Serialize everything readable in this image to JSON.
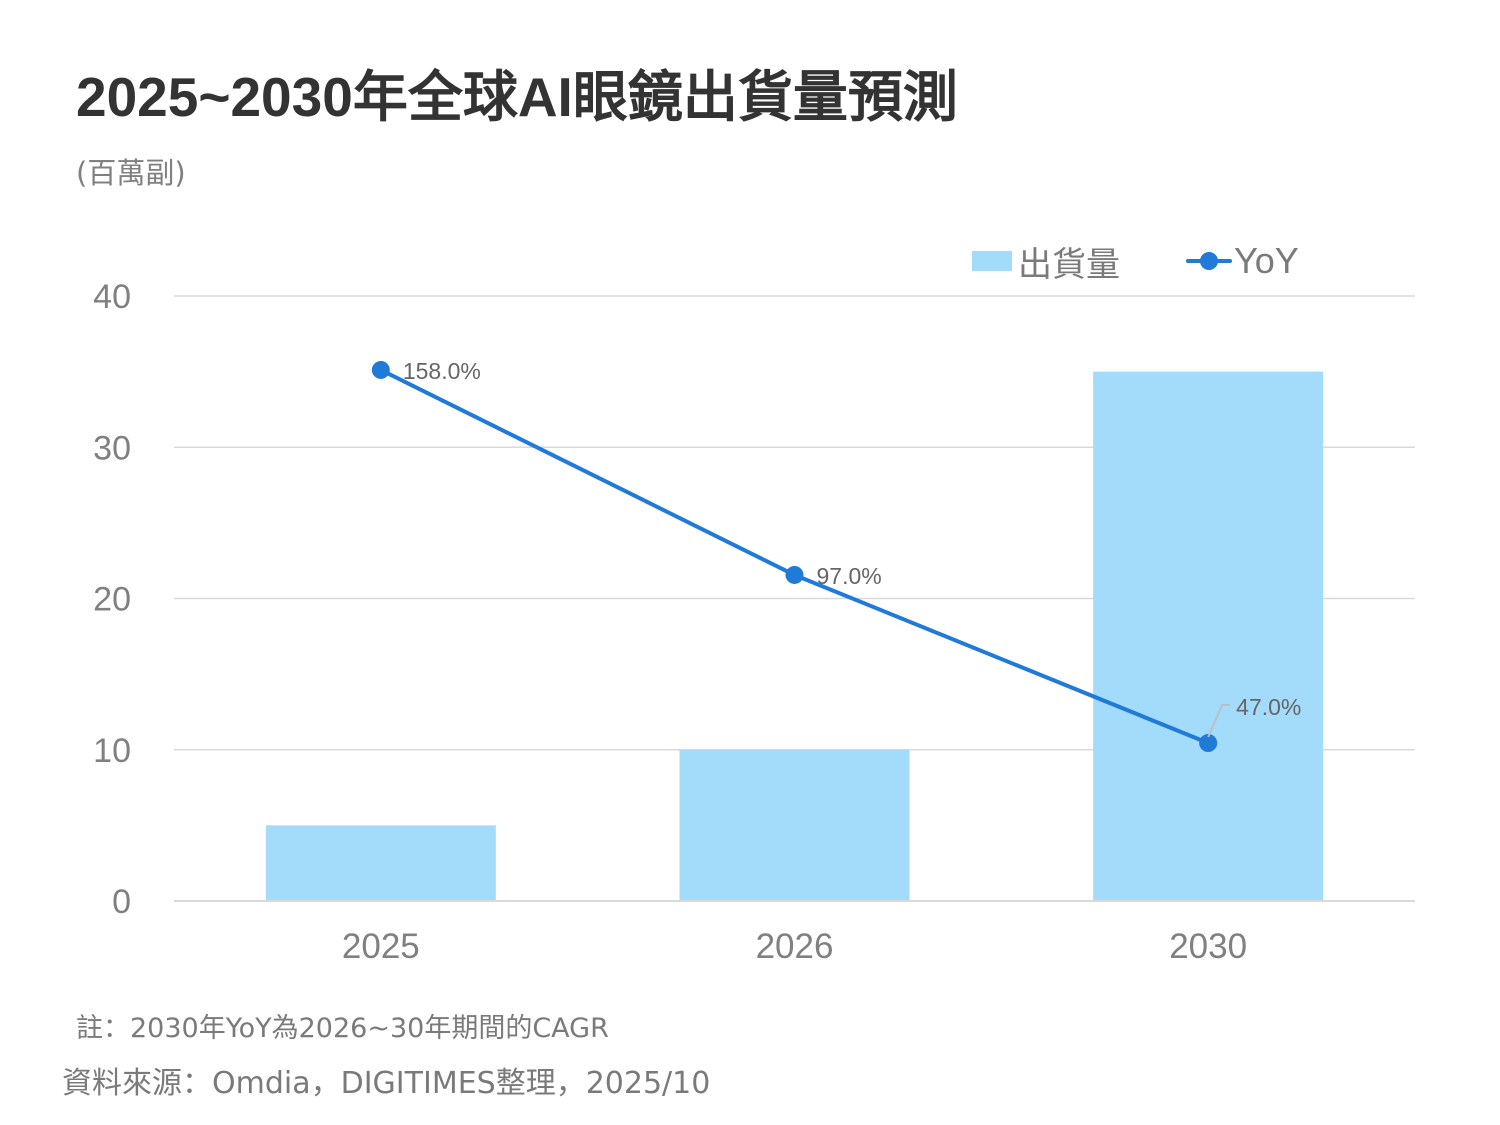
{
  "header": {
    "title": "2025~2030年全球AI眼鏡出貨量預測",
    "unit": "(百萬副)"
  },
  "legend": {
    "bar_label": "出貨量",
    "line_label": "YoY"
  },
  "footer": {
    "note": "註：2030年YoY為2026~30年期間的CAGR",
    "source": "資料來源：Omdia，DIGITIMES整理，2025/10"
  },
  "colors": {
    "bar": "#a3dbfa",
    "line": "#1f7ad8",
    "grid": "#d9d9d9",
    "axis_text": "#808080",
    "title": "#333333"
  },
  "chart_data": {
    "type": "bar",
    "title": "2025~2030年全球AI眼鏡出貨量預測",
    "ylabel": "(百萬副)",
    "xlabel": "",
    "categories": [
      "2025",
      "2026",
      "2030"
    ],
    "ylim": [
      0,
      40
    ],
    "yticks": [
      0,
      10,
      20,
      30,
      40
    ],
    "ytick_labels": [
      "0",
      "10",
      "20",
      "30",
      "40"
    ],
    "grid": true,
    "legend_position": "top-right",
    "series": [
      {
        "name": "出貨量",
        "type": "bar",
        "axis": "primary",
        "values": [
          5,
          10,
          35
        ]
      },
      {
        "name": "YoY",
        "type": "line",
        "axis": "secondary",
        "secondary_ylim": [
          0,
          180
        ],
        "values": [
          158.0,
          97.0,
          47.0
        ],
        "data_labels": [
          "158.0%",
          "97.0%",
          "47.0%"
        ]
      }
    ],
    "annotations": [
      "2030年YoY為2026~30年期間的CAGR"
    ]
  }
}
